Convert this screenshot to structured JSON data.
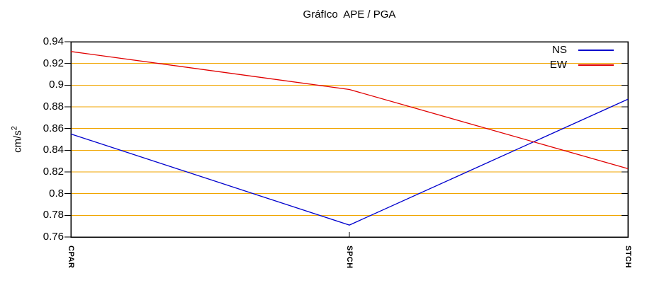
{
  "title": "GráfIco  APE / PGA",
  "chart_data": {
    "type": "line",
    "title": "GráfIco  APE / PGA",
    "categories": [
      "CPAR",
      "SPCH",
      "STCH"
    ],
    "series": [
      {
        "name": "NS",
        "color": "#0000cd",
        "values": [
          0.855,
          0.771,
          0.887
        ]
      },
      {
        "name": "EW",
        "color": "#e00000",
        "values": [
          0.931,
          0.896,
          0.823
        ]
      }
    ],
    "xlabel": "",
    "ylabel": "cm/s²",
    "ylabel_base": "cm/s",
    "ylabel_exponent": "2",
    "ylim": [
      0.76,
      0.94
    ],
    "ytick_step": 0.02,
    "ytick_labels": [
      "0.76",
      "0.78",
      "0.8",
      "0.82",
      "0.84",
      "0.86",
      "0.88",
      "0.9",
      "0.92",
      "0.94"
    ],
    "grid": true,
    "grid_color": "#f0a500",
    "axis_color": "#000000",
    "background_color": "#ffffff",
    "legend_position": "top-right"
  }
}
